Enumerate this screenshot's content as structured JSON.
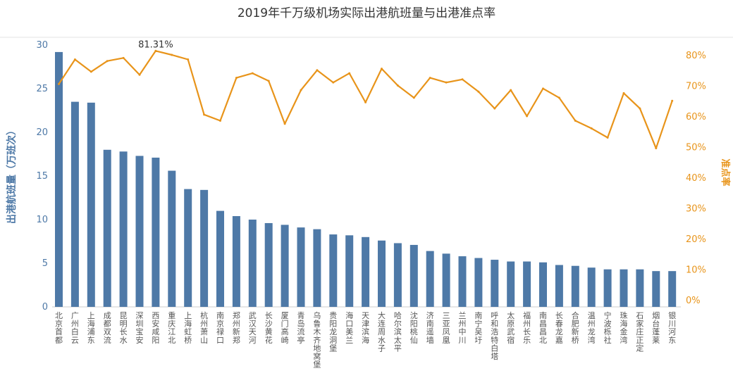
{
  "chart_data": {
    "type": "bar",
    "title": "2019年千万级机场实际出港航班量与出港准点率",
    "ylabel": "出港航班量（万班次）",
    "y2label": "准点率",
    "ylim": [
      0,
      30
    ],
    "y2lim": [
      0,
      80
    ],
    "yticks": [
      "0",
      "5",
      "10",
      "15",
      "20",
      "25",
      "30"
    ],
    "y2ticks": [
      "0%",
      "10%",
      "20%",
      "30%",
      "40%",
      "50%",
      "60%",
      "70%",
      "80%"
    ],
    "grid": false,
    "annotation": "81.31%",
    "categories": [
      "北京首都",
      "广州白云",
      "上海浦东",
      "成都双流",
      "昆明长水",
      "深圳宝安",
      "西安咸阳",
      "重庆江北",
      "上海虹桥",
      "杭州萧山",
      "南京禄口",
      "郑州新郑",
      "武汉天河",
      "长沙黄花",
      "厦门高崎",
      "青岛流亭",
      "乌鲁木齐地窝堡",
      "贵阳龙洞堡",
      "海口美兰",
      "天津滨海",
      "大连周水子",
      "哈尔滨太平",
      "沈阳桃仙",
      "济南遥墙",
      "三亚凤凰",
      "兰州中川",
      "南宁吴圩",
      "呼和浩特白塔",
      "太原武宿",
      "福州长乐",
      "南昌昌北",
      "长春龙嘉",
      "合肥新桥",
      "温州龙湾",
      "宁波栎社",
      "珠海金湾",
      "石家庄正定",
      "烟台蓬莱",
      "银川河东"
    ],
    "series": [
      {
        "name": "出港航班量",
        "type": "bar",
        "color": "#4e79a7",
        "values": [
          29.2,
          23.5,
          23.4,
          18.0,
          17.8,
          17.3,
          17.1,
          15.6,
          13.5,
          13.4,
          11.0,
          10.4,
          10.0,
          9.6,
          9.4,
          9.1,
          8.9,
          8.3,
          8.2,
          8.0,
          7.6,
          7.3,
          7.1,
          6.4,
          6.1,
          5.8,
          5.6,
          5.4,
          5.2,
          5.2,
          5.1,
          4.8,
          4.7,
          4.5,
          4.3,
          4.3,
          4.3,
          4.1,
          4.1
        ]
      },
      {
        "name": "准点率",
        "type": "line",
        "color": "#e8941a",
        "values": [
          70.5,
          78.5,
          74.5,
          78.0,
          79.0,
          73.5,
          81.31,
          80.0,
          78.5,
          60.5,
          58.5,
          72.5,
          74.0,
          71.5,
          57.5,
          68.5,
          75.0,
          71.0,
          74.0,
          64.5,
          75.5,
          70.0,
          66.0,
          72.5,
          71.0,
          72.0,
          68.0,
          62.5,
          68.5,
          60.0,
          69.0,
          66.0,
          58.5,
          56.0,
          53.0,
          67.5,
          62.5,
          49.5,
          65.0
        ]
      }
    ]
  }
}
